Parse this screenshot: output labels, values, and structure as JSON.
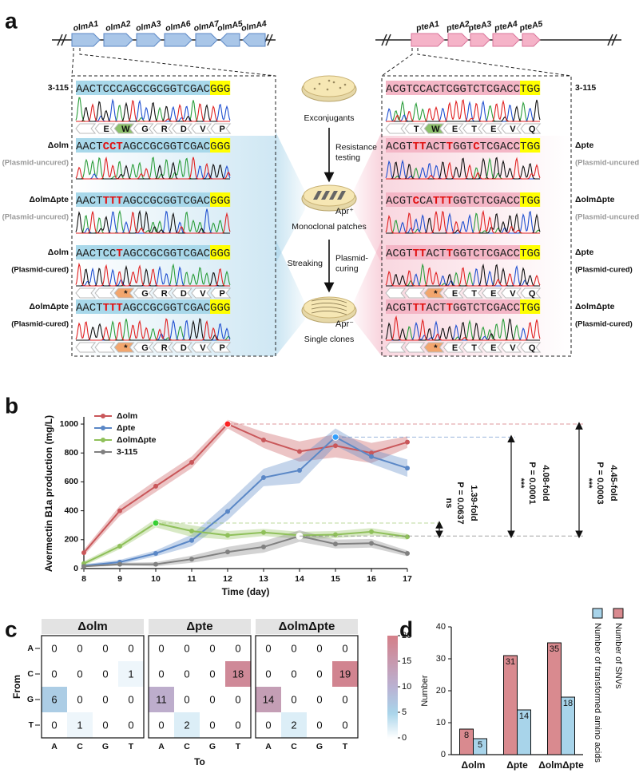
{
  "panel_labels": [
    "a",
    "b",
    "c",
    "d"
  ],
  "diagram": {
    "left_genes": [
      "olmA1",
      "olmA2",
      "olmA3",
      "olmA6",
      "olmA7",
      "olmA5",
      "olmA4"
    ],
    "right_genes": [
      "pteA1",
      "pteA2",
      "pteA3",
      "pteA4",
      "pteA5"
    ],
    "left_rows": [
      {
        "label": "3-115",
        "seq": [
          "AACTCCCAGCCGCGGTCGAC"
        ],
        "pam": "GGG",
        "aa": {
          "residues": [
            "E",
            "W",
            "G",
            "R",
            "D",
            "V",
            "P"
          ],
          "colors": [
            "#ffffff",
            "#8cc06a",
            "#ffffff",
            "#ffffff",
            "#ffffff",
            "#ffffff",
            "#ffffff"
          ]
        }
      },
      {
        "label": "Δolm",
        "note": "(Plasmid-uncured)",
        "seq": [
          "AACT",
          "CCT",
          "AGCCGCGGTCGAC"
        ],
        "pam": "GGG"
      },
      {
        "label": "ΔolmΔpte",
        "note": "(Plasmid-uncured)",
        "seq": [
          "AACT",
          "TTT",
          "AGCCGCGGTCGAC"
        ],
        "pam": "GGG"
      },
      {
        "label": "Δolm",
        "note": "(Plasmid-cured)",
        "seq": [
          "AACTCC",
          "T",
          "AGCCGCGGTCGAC"
        ],
        "pam": "GGG",
        "aa": {
          "residues": [
            "*",
            "G",
            "R",
            "D",
            "V",
            "P"
          ],
          "colors": [
            "#f2a66e",
            "#ffffff",
            "#ffffff",
            "#ffffff",
            "#ffffff",
            "#ffffff"
          ]
        }
      },
      {
        "label": "ΔolmΔpte",
        "note": "(Plasmid-cured)",
        "seq": [
          "AACT",
          "TTT",
          "AGCCGCGGTCGAC"
        ],
        "pam": "GGG",
        "aa": {
          "residues": [
            "*",
            "G",
            "R",
            "D",
            "V",
            "P"
          ],
          "colors": [
            "#f2a66e",
            "#ffffff",
            "#ffffff",
            "#ffffff",
            "#ffffff",
            "#ffffff"
          ]
        }
      }
    ],
    "right_rows": [
      {
        "label": "3-115",
        "seq": [
          "ACGTCCACTCGGTCTCGACC"
        ],
        "pam": "TGG",
        "aa": {
          "residues": [
            "T",
            "W",
            "E",
            "T",
            "E",
            "V",
            "Q"
          ],
          "colors": [
            "#ffffff",
            "#8cc06a",
            "#ffffff",
            "#ffffff",
            "#ffffff",
            "#ffffff",
            "#ffffff"
          ]
        }
      },
      {
        "label": "Δpte",
        "note": "(Plasmid-uncured)",
        "seq": [
          "ACGT",
          "TT",
          "ACT",
          "T",
          "GGT",
          "C",
          "TCGACC"
        ],
        "pam": "TGG"
      },
      {
        "label": "ΔolmΔpte",
        "note": "(Plasmid-uncured)",
        "seq": [
          "ACGT",
          "C",
          "CA",
          "TTT",
          "GGTCTCGACC"
        ],
        "pam": "TGG"
      },
      {
        "label": "Δpte",
        "note": "(Plasmid-cured)",
        "seq": [
          "ACGT",
          "TT",
          "ACT",
          "T",
          "GGTCTCGACC"
        ],
        "pam": "TGG",
        "aa": {
          "residues": [
            "*",
            "E",
            "T",
            "E",
            "V",
            "Q"
          ],
          "colors": [
            "#f2a66e",
            "#ffffff",
            "#ffffff",
            "#ffffff",
            "#ffffff",
            "#ffffff"
          ]
        }
      },
      {
        "label": "ΔolmΔpte",
        "note": "(Plasmid-cured)",
        "seq": [
          "ACGT",
          "TT",
          "ACT",
          "T",
          "GGTCTCGACC"
        ],
        "pam": "TGG",
        "aa": {
          "residues": [
            "*",
            "E",
            "T",
            "E",
            "V",
            "Q"
          ],
          "colors": [
            "#f2a66e",
            "#ffffff",
            "#ffffff",
            "#ffffff",
            "#ffffff",
            "#ffffff"
          ]
        }
      }
    ],
    "steps": [
      "Exconjugants",
      "Monoclonal patches",
      "Single clones"
    ],
    "plate_marks": [
      "Apr⁺",
      "Apr⁻"
    ],
    "arrow_labels": [
      {
        "right": [
          "Resistance",
          "testing"
        ]
      },
      {
        "left": [
          "Streaking"
        ],
        "right": [
          "Plasmid-",
          "curing"
        ]
      }
    ]
  },
  "chart_data": [
    {
      "type": "line",
      "xlabel": "Time (day)",
      "ylabel": "Avermectin B1a production (mg/L)",
      "x": [
        8,
        9,
        10,
        11,
        12,
        13,
        14,
        15,
        16,
        17
      ],
      "xlim": [
        8,
        17
      ],
      "xticks": [
        8,
        9,
        10,
        11,
        12,
        13,
        14,
        15,
        16,
        17
      ],
      "ylim": [
        0,
        1050
      ],
      "yticks": [
        0,
        200,
        400,
        600,
        800,
        1000
      ],
      "series": [
        {
          "name": "Δolm",
          "color": "#c9575a",
          "values": [
            110,
            400,
            570,
            735,
            1000,
            890,
            810,
            850,
            800,
            875
          ],
          "errors": [
            20,
            35,
            40,
            40,
            30,
            55,
            70,
            80,
            70,
            40
          ]
        },
        {
          "name": "Δpte",
          "color": "#5a87c6",
          "values": [
            20,
            45,
            105,
            195,
            395,
            630,
            680,
            910,
            775,
            695
          ],
          "errors": [
            10,
            15,
            20,
            40,
            60,
            60,
            90,
            60,
            50,
            60
          ]
        },
        {
          "name": "ΔolmΔpte",
          "color": "#8fc05a",
          "values": [
            35,
            155,
            315,
            260,
            230,
            250,
            230,
            235,
            255,
            220
          ],
          "errors": [
            15,
            20,
            30,
            40,
            30,
            25,
            25,
            25,
            25,
            20
          ]
        },
        {
          "name": "3-115",
          "color": "#808080",
          "values": [
            15,
            30,
            30,
            65,
            115,
            150,
            225,
            170,
            175,
            105
          ],
          "errors": [
            5,
            10,
            15,
            25,
            35,
            40,
            40,
            30,
            30,
            20
          ]
        }
      ],
      "annotations": [
        {
          "fold": "4.45-fold",
          "p": "P = 0.0003",
          "sig": "***"
        },
        {
          "fold": "4.08-fold",
          "p": "P = 0.0001",
          "sig": "***"
        },
        {
          "fold": "1.39-fold",
          "p": "P = 0.0637",
          "sig": "ns"
        }
      ]
    },
    {
      "type": "heatmap",
      "ylabel": "From",
      "xlabel": "To",
      "rows": [
        "A",
        "C",
        "G",
        "T"
      ],
      "cols": [
        "A",
        "C",
        "G",
        "T"
      ],
      "panels": [
        {
          "title": "Δolm",
          "values": [
            [
              0,
              0,
              0,
              0
            ],
            [
              0,
              0,
              0,
              1
            ],
            [
              6,
              0,
              0,
              0
            ],
            [
              0,
              1,
              0,
              0
            ]
          ]
        },
        {
          "title": "Δpte",
          "values": [
            [
              0,
              0,
              0,
              0
            ],
            [
              0,
              0,
              0,
              18
            ],
            [
              11,
              0,
              0,
              0
            ],
            [
              0,
              2,
              0,
              0
            ]
          ]
        },
        {
          "title": "ΔolmΔpte",
          "values": [
            [
              0,
              0,
              0,
              0
            ],
            [
              0,
              0,
              0,
              19
            ],
            [
              14,
              0,
              0,
              0
            ],
            [
              0,
              2,
              0,
              0
            ]
          ]
        }
      ],
      "clim": [
        0,
        20
      ],
      "cticks": [
        0,
        5,
        10,
        15,
        20
      ],
      "colormap": [
        [
          0,
          "#ffffff"
        ],
        [
          5,
          "#a8d4ea"
        ],
        [
          10,
          "#bab2d3"
        ],
        [
          20,
          "#d47f89"
        ]
      ]
    },
    {
      "type": "bar",
      "ylabel": "Number",
      "categories": [
        "Δolm",
        "Δpte",
        "ΔolmΔpte"
      ],
      "series": [
        {
          "name": "Number of SNVs",
          "color": "#d98a8f",
          "values": [
            8,
            31,
            35
          ]
        },
        {
          "name": "Number of transformed amino acids",
          "color": "#a8d4ea",
          "values": [
            5,
            14,
            18
          ]
        }
      ],
      "ylim": [
        0,
        40
      ],
      "yticks": [
        0,
        10,
        20,
        30,
        40
      ]
    }
  ]
}
